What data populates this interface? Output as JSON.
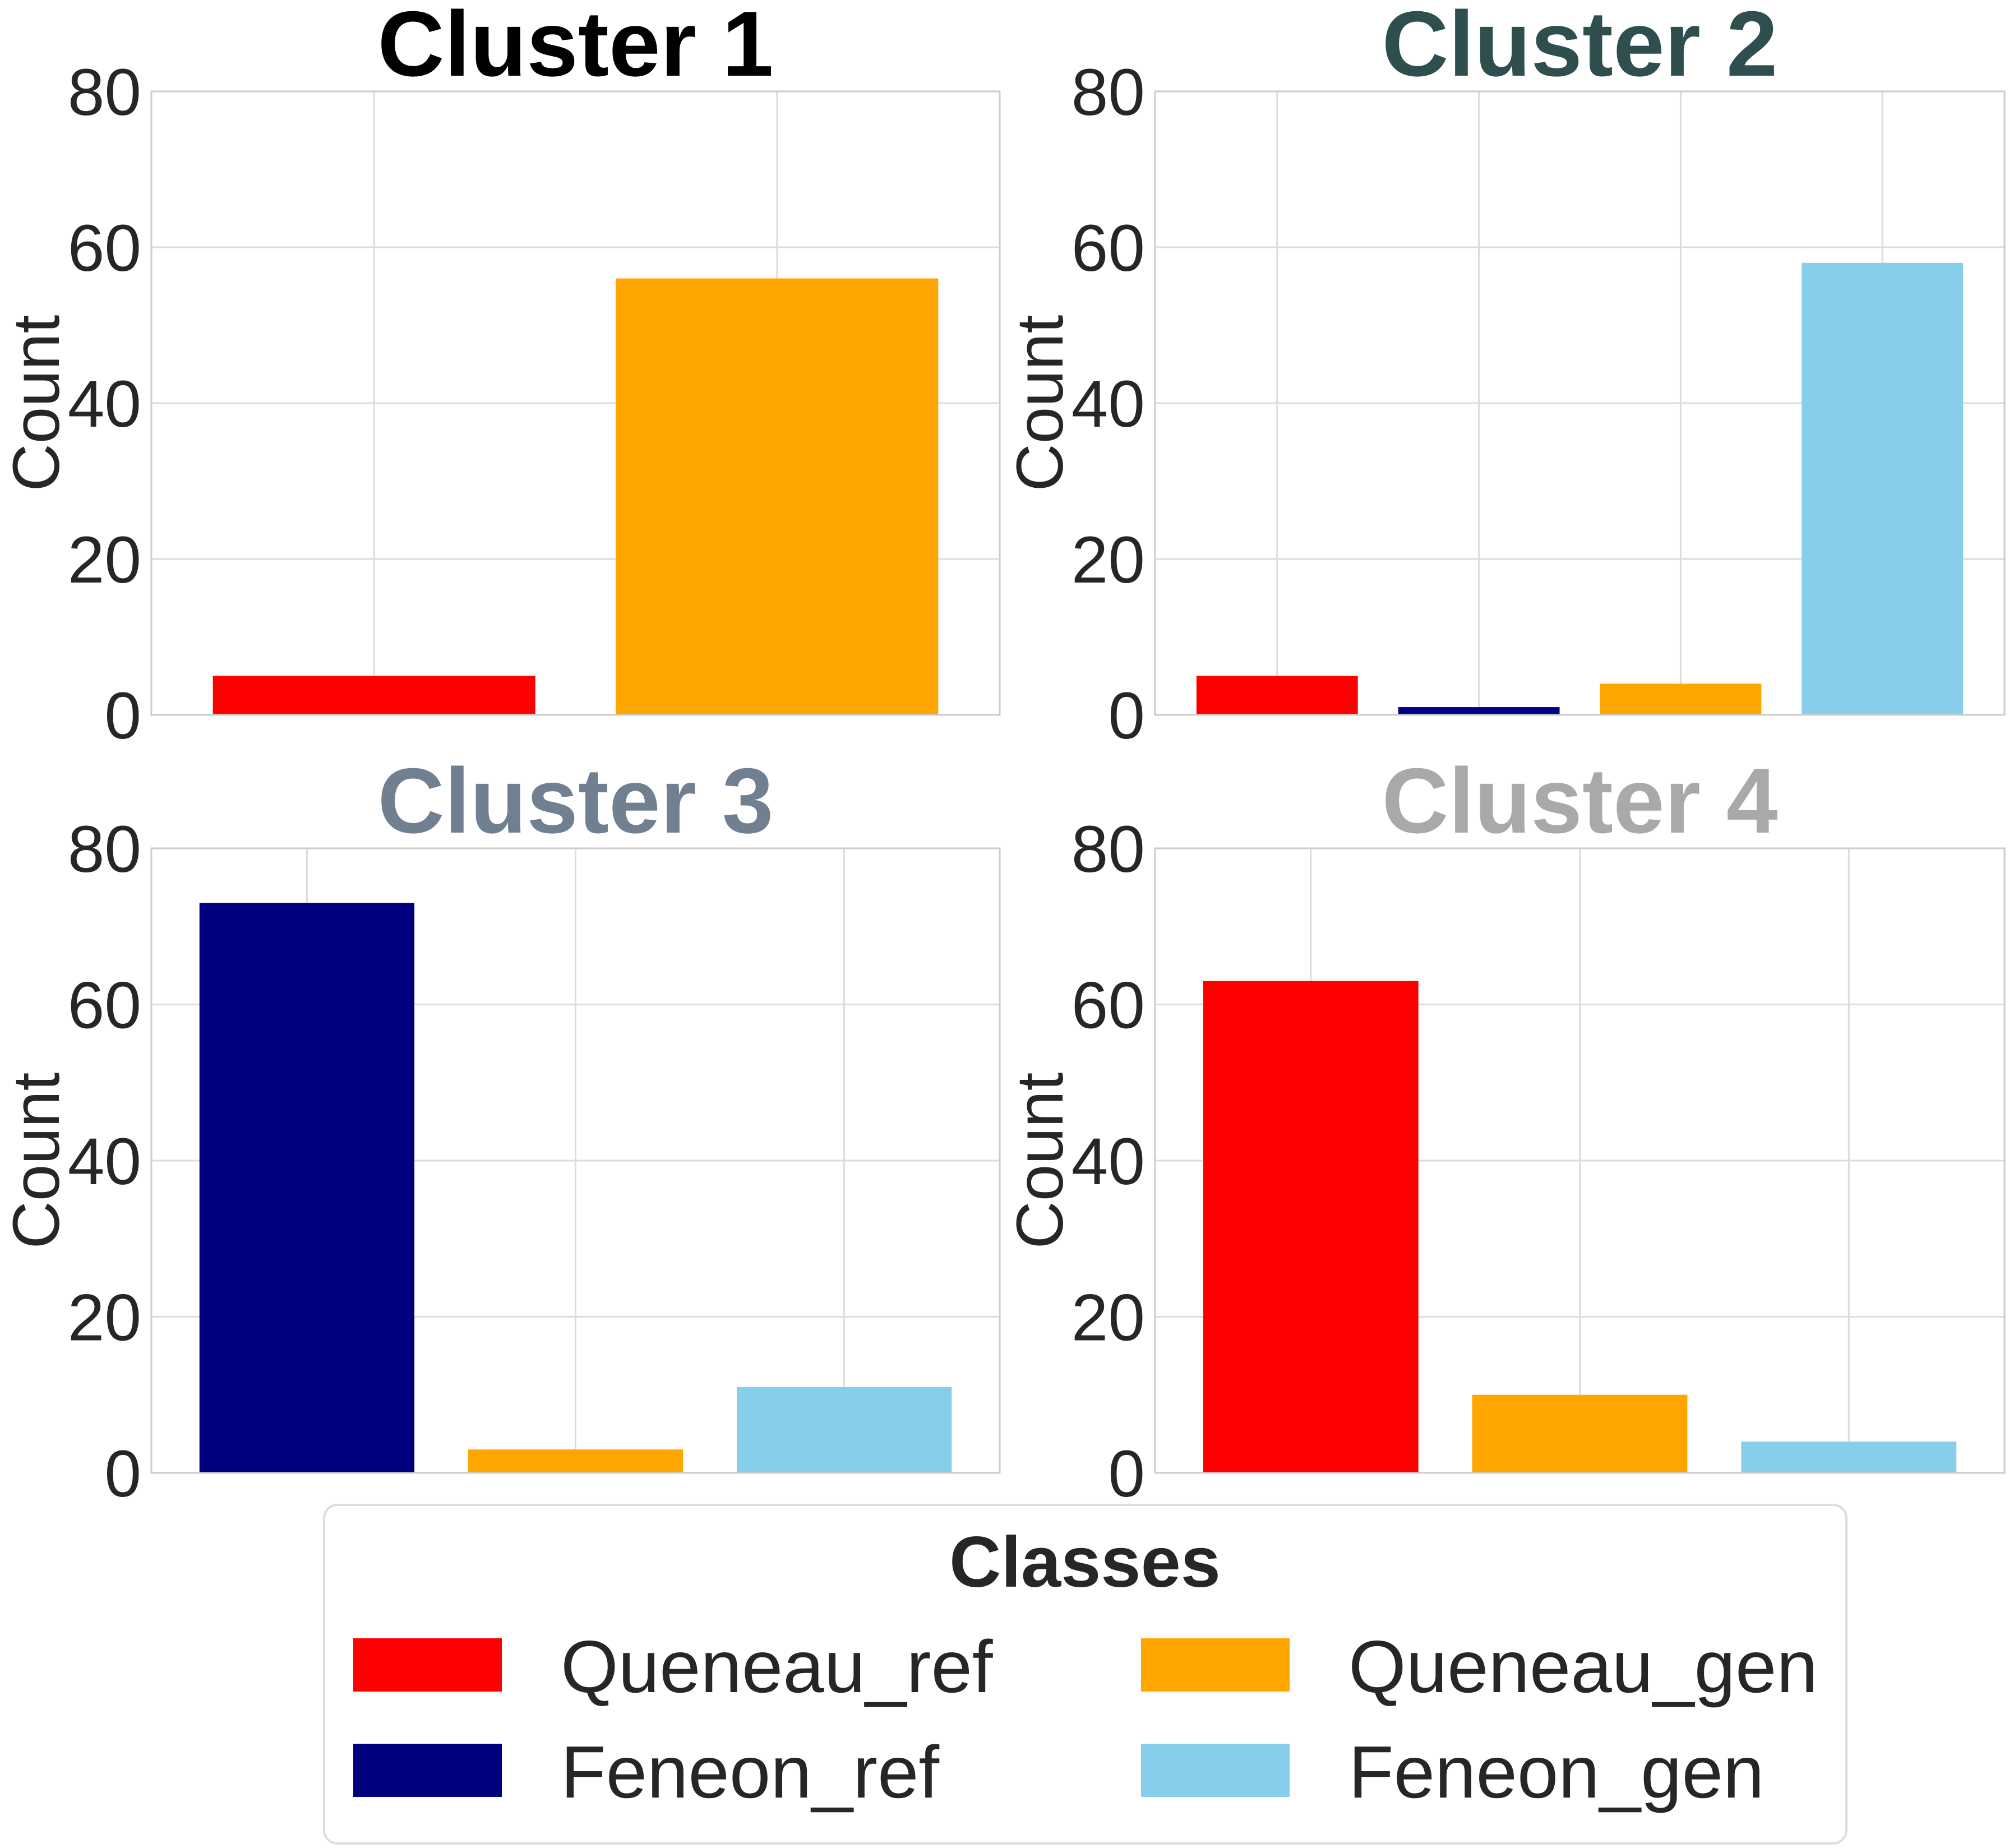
{
  "legend": {
    "title": "Classes",
    "entries": [
      {
        "label": "Queneau_ref",
        "color": "#ff0000"
      },
      {
        "label": "Queneau_gen",
        "color": "#ffa500"
      },
      {
        "label": "Feneon_ref",
        "color": "#000080"
      },
      {
        "label": "Feneon_gen",
        "color": "#87ceeb"
      }
    ]
  },
  "chart_data": [
    {
      "type": "bar",
      "title": "Cluster 1",
      "title_color": "#000000",
      "ylabel": "Count",
      "ylim": [
        0,
        80
      ],
      "yticks": [
        0,
        20,
        40,
        60,
        80
      ],
      "grid": true,
      "categories": [
        "Queneau_ref",
        "Queneau_gen"
      ],
      "values": [
        5,
        56
      ],
      "colors": [
        "#ff0000",
        "#ffa500"
      ]
    },
    {
      "type": "bar",
      "title": "Cluster 2",
      "title_color": "#2f4f4f",
      "ylabel": "Count",
      "ylim": [
        0,
        80
      ],
      "yticks": [
        0,
        20,
        40,
        60,
        80
      ],
      "grid": true,
      "categories": [
        "Queneau_ref",
        "Feneon_ref",
        "Queneau_gen",
        "Feneon_gen"
      ],
      "values": [
        5,
        1,
        4,
        58
      ],
      "colors": [
        "#ff0000",
        "#000080",
        "#ffa500",
        "#87ceeb"
      ]
    },
    {
      "type": "bar",
      "title": "Cluster 3",
      "title_color": "#708090",
      "ylabel": "Count",
      "ylim": [
        0,
        80
      ],
      "yticks": [
        0,
        20,
        40,
        60,
        80
      ],
      "grid": true,
      "categories": [
        "Feneon_ref",
        "Queneau_gen",
        "Feneon_gen"
      ],
      "values": [
        73,
        3,
        11
      ],
      "colors": [
        "#000080",
        "#ffa500",
        "#87ceeb"
      ]
    },
    {
      "type": "bar",
      "title": "Cluster 4",
      "title_color": "#a9a9a9",
      "ylabel": "Count",
      "ylim": [
        0,
        80
      ],
      "yticks": [
        0,
        20,
        40,
        60,
        80
      ],
      "grid": true,
      "categories": [
        "Queneau_ref",
        "Queneau_gen",
        "Feneon_gen"
      ],
      "values": [
        63,
        10,
        4
      ],
      "colors": [
        "#ff0000",
        "#ffa500",
        "#87ceeb"
      ]
    }
  ]
}
